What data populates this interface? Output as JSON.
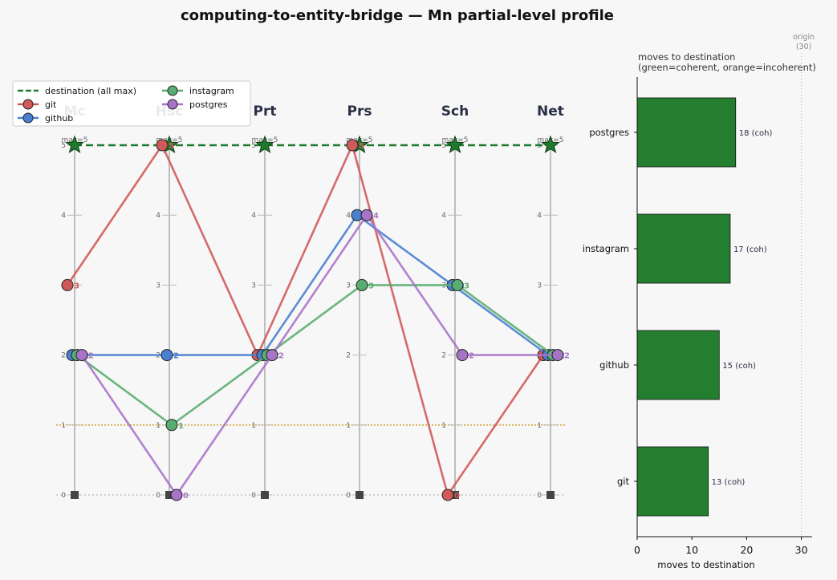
{
  "title": "computing-to-entity-bridge — Mn partial-level profile",
  "chart_data": [
    {
      "type": "line",
      "kind": "parallel-coordinates",
      "axes": [
        "Mc",
        "Hsc",
        "Prt",
        "Prs",
        "Sch",
        "Net"
      ],
      "axis_max_label": "max=5",
      "ylim": [
        0,
        5
      ],
      "yticks": [
        0,
        1,
        2,
        3,
        4,
        5
      ],
      "reference_level": 1,
      "legend_position": "top-left",
      "destination": {
        "name": "destination (all max)",
        "values": [
          5,
          5,
          5,
          5,
          5,
          5
        ],
        "color": "#1f7a2e"
      },
      "series": [
        {
          "name": "git",
          "values": [
            3,
            5,
            2,
            5,
            0,
            2
          ],
          "color": "#d05a5a"
        },
        {
          "name": "github",
          "values": [
            2,
            2,
            2,
            4,
            3,
            2
          ],
          "color": "#4a80d0"
        },
        {
          "name": "instagram",
          "values": [
            2,
            1,
            2,
            3,
            3,
            2
          ],
          "color": "#5aad72"
        },
        {
          "name": "postgres",
          "values": [
            2,
            0,
            2,
            4,
            2,
            2
          ],
          "color": "#a874c8"
        }
      ]
    },
    {
      "type": "bar",
      "orientation": "horizontal",
      "title": "moves to destination\n(green=coherent, orange=incoherent)",
      "xlabel": "moves to destination",
      "xlim": [
        0,
        32
      ],
      "xticks": [
        0,
        10,
        20,
        30
      ],
      "origin_label": "origin\n(30)",
      "origin_value": 30,
      "categories": [
        "postgres",
        "instagram",
        "github",
        "git"
      ],
      "values": [
        18,
        17,
        15,
        13
      ],
      "status": [
        "coh",
        "coh",
        "coh",
        "coh"
      ],
      "colors": {
        "coherent": "#237f2f",
        "incoherent": "#e8892b"
      }
    }
  ]
}
